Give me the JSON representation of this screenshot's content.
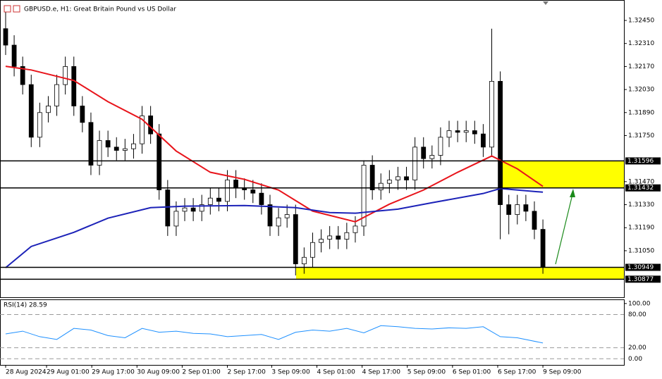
{
  "chart_data": [
    {
      "type": "candlestick",
      "title": "GBPUSD.e, H1:  Great Britain Pound vs US Dollar",
      "xlim": [
        -0.66,
        72.5
      ],
      "xticks": [
        {
          "value": 0,
          "label": "28 Aug 2024"
        },
        {
          "value": 4.8,
          "label": "29 Aug 01:00"
        },
        {
          "value": 10.1,
          "label": "29 Aug 17:00"
        },
        {
          "value": 15.4,
          "label": "30 Aug 09:00"
        },
        {
          "value": 20.7,
          "label": "2 Sep 01:00"
        },
        {
          "value": 26,
          "label": "2 Sep 17:00"
        },
        {
          "value": 31.2,
          "label": "3 Sep 09:00"
        },
        {
          "value": 36.5,
          "label": "4 Sep 01:00"
        },
        {
          "value": 41.8,
          "label": "4 Sep 17:00"
        },
        {
          "value": 47.1,
          "label": "5 Sep 09:00"
        },
        {
          "value": 52.4,
          "label": "6 Sep 01:00"
        },
        {
          "value": 57.7,
          "label": "6 Sep 17:00"
        },
        {
          "value": 63,
          "label": "9 Sep 09:00"
        }
      ],
      "ylim": [
        1.30767,
        1.3257
      ],
      "yticks": [
        {
          "value": 1.3245,
          "label": "1.32450"
        },
        {
          "value": 1.3231,
          "label": "1.32310"
        },
        {
          "value": 1.3217,
          "label": "1.32170"
        },
        {
          "value": 1.3203,
          "label": "1.32030"
        },
        {
          "value": 1.3189,
          "label": "1.31890"
        },
        {
          "value": 1.3175,
          "label": "1.31750"
        },
        {
          "value": 1.3147,
          "label": "1.31470"
        },
        {
          "value": 1.3133,
          "label": "1.31330"
        },
        {
          "value": 1.3119,
          "label": "1.31190"
        },
        {
          "value": 1.3105,
          "label": "1.31050"
        }
      ],
      "open": [
        1.324,
        1.323,
        1.3217,
        1.3206,
        1.3174,
        1.3189,
        1.3193,
        1.3206,
        1.3217,
        1.3193,
        1.3183,
        1.3157,
        1.3172,
        1.3168,
        1.3166,
        1.3167,
        1.317,
        1.3187,
        1.3176,
        1.3142,
        1.312,
        1.3129,
        1.3131,
        1.3129,
        1.3133,
        1.3137,
        1.3135,
        1.3148,
        1.3143,
        1.3142,
        1.314,
        1.3133,
        1.312,
        1.3125,
        1.3127,
        1.3097,
        1.3101,
        1.311,
        1.3112,
        1.3114,
        1.3112,
        1.3116,
        1.312,
        1.3157,
        1.3142,
        1.3146,
        1.3148,
        1.315,
        1.3148,
        1.3168,
        1.3161,
        1.3163,
        1.3174,
        1.3178,
        1.3177,
        1.3178,
        1.3176,
        1.3168,
        1.3208,
        1.3133,
        1.3127,
        1.3133,
        1.3129,
        1.3118
      ],
      "high": [
        1.325,
        1.3236,
        1.3223,
        1.3212,
        1.3195,
        1.3199,
        1.3212,
        1.3223,
        1.3223,
        1.3199,
        1.3189,
        1.3178,
        1.3178,
        1.3174,
        1.3173,
        1.3176,
        1.3193,
        1.3193,
        1.3182,
        1.3148,
        1.3135,
        1.3137,
        1.3137,
        1.3139,
        1.3143,
        1.3143,
        1.3154,
        1.3154,
        1.3149,
        1.3148,
        1.3146,
        1.3139,
        1.3131,
        1.3133,
        1.3133,
        1.3107,
        1.3116,
        1.3118,
        1.312,
        1.312,
        1.3122,
        1.3126,
        1.316,
        1.3163,
        1.3152,
        1.3154,
        1.3156,
        1.3156,
        1.3174,
        1.3174,
        1.3169,
        1.318,
        1.3184,
        1.3184,
        1.3184,
        1.3184,
        1.3182,
        1.324,
        1.3214,
        1.3139,
        1.3139,
        1.3139,
        1.3135,
        1.3124
      ],
      "low": [
        1.3224,
        1.3211,
        1.32,
        1.3168,
        1.3168,
        1.3183,
        1.3187,
        1.32,
        1.3187,
        1.3177,
        1.3151,
        1.3151,
        1.3162,
        1.316,
        1.316,
        1.3161,
        1.3164,
        1.317,
        1.3136,
        1.3114,
        1.3114,
        1.3123,
        1.3123,
        1.3123,
        1.3127,
        1.3129,
        1.3129,
        1.3137,
        1.3136,
        1.3134,
        1.3127,
        1.3114,
        1.3114,
        1.3119,
        1.309,
        1.3091,
        1.3095,
        1.3104,
        1.3106,
        1.3106,
        1.3106,
        1.311,
        1.3114,
        1.3136,
        1.3136,
        1.314,
        1.3142,
        1.3142,
        1.3142,
        1.3155,
        1.3155,
        1.3157,
        1.3168,
        1.3171,
        1.3171,
        1.317,
        1.3162,
        1.3162,
        1.3112,
        1.3115,
        1.3121,
        1.3123,
        1.3112,
        1.3091
      ],
      "close": [
        1.323,
        1.3217,
        1.3206,
        1.3174,
        1.3189,
        1.3193,
        1.3206,
        1.3217,
        1.3193,
        1.3183,
        1.3157,
        1.3172,
        1.3168,
        1.3166,
        1.3167,
        1.317,
        1.3187,
        1.3176,
        1.3142,
        1.312,
        1.3129,
        1.3131,
        1.3129,
        1.3133,
        1.3137,
        1.3135,
        1.3148,
        1.3143,
        1.3142,
        1.314,
        1.3133,
        1.312,
        1.3125,
        1.3127,
        1.3097,
        1.3101,
        1.311,
        1.3112,
        1.3114,
        1.3112,
        1.3116,
        1.312,
        1.3157,
        1.3142,
        1.3146,
        1.3148,
        1.315,
        1.3148,
        1.3168,
        1.3161,
        1.3163,
        1.3174,
        1.3178,
        1.3177,
        1.3178,
        1.3176,
        1.3168,
        1.3208,
        1.3133,
        1.3127,
        1.3133,
        1.3129,
        1.3118,
        1.3095
      ],
      "series": [
        {
          "color": "#e8141b",
          "x": [
            0,
            3,
            8,
            12,
            16,
            20,
            24,
            28,
            32,
            36,
            41,
            45,
            49,
            53,
            57,
            60,
            63
          ],
          "values": [
            1.32171,
            1.32149,
            1.32085,
            1.31956,
            1.31849,
            1.31656,
            1.31527,
            1.31484,
            1.31419,
            1.31291,
            1.31226,
            1.31333,
            1.31419,
            1.31527,
            1.31626,
            1.31548,
            1.31441
          ]
        },
        {
          "color": "#1c22b8",
          "x": [
            0,
            3,
            8,
            12,
            17,
            21,
            28,
            34,
            38,
            41,
            46,
            50,
            56,
            58,
            63
          ],
          "values": [
            1.30947,
            1.31076,
            1.31162,
            1.31248,
            1.31312,
            1.31321,
            1.31325,
            1.31312,
            1.31282,
            1.31278,
            1.31303,
            1.31342,
            1.31398,
            1.31428,
            1.31406
          ]
        }
      ],
      "levels": [
        1.31596,
        1.31432,
        1.30949,
        1.30877
      ],
      "zone_color": "#ffff00",
      "arrow_color": "#1a8a1a"
    },
    {
      "type": "line",
      "title": "RSI(14) 28.59",
      "color": "#1e90ff",
      "ylim": [
        -11.1,
        106.2
      ],
      "yticks": [
        {
          "value": 100,
          "label": "100.00"
        },
        {
          "value": 80,
          "label": "80.00"
        },
        {
          "value": 20,
          "label": "20.00"
        },
        {
          "value": 0,
          "label": "0.00"
        }
      ],
      "x": [
        0,
        2,
        4,
        6,
        8,
        10,
        12,
        14,
        16,
        18,
        20,
        22,
        24,
        26,
        28,
        30,
        32,
        34,
        36,
        38,
        40,
        42,
        44,
        46,
        48,
        50,
        52,
        54,
        56,
        58,
        60,
        63
      ],
      "values": [
        45,
        50,
        40,
        35,
        55,
        52,
        42,
        38,
        55,
        48,
        50,
        46,
        45,
        40,
        42,
        44,
        35,
        48,
        52,
        50,
        55,
        47,
        60,
        58,
        55,
        54,
        56,
        55,
        58,
        40,
        38,
        28.59
      ]
    }
  ]
}
